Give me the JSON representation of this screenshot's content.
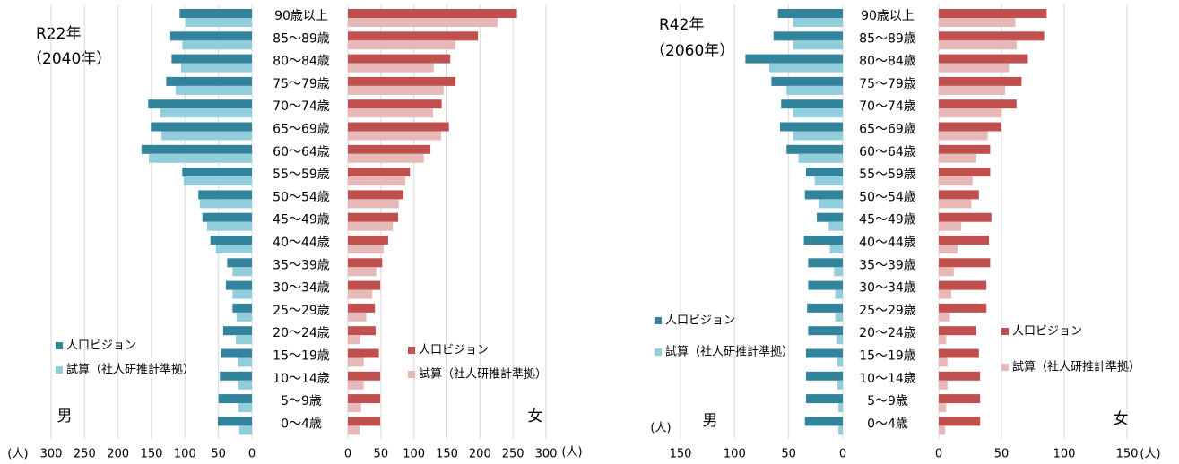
{
  "chart_data": [
    {
      "type": "population_pyramid",
      "title": "R22年",
      "subtitle": "（2040年）",
      "categories": [
        "90歳以上",
        "85～89歳",
        "80～84歳",
        "75～79歳",
        "70～74歳",
        "65～69歳",
        "60～64歳",
        "55～59歳",
        "50～54歳",
        "45～49歳",
        "40～44歳",
        "35～39歳",
        "30～34歳",
        "25～29歳",
        "20～24歳",
        "15～19歳",
        "10～14歳",
        "5～9歳",
        "0～4歳"
      ],
      "male": {
        "label": "男",
        "unit": "(人)",
        "xlim": [
          0,
          300
        ],
        "xticks": [
          300,
          250,
          200,
          150,
          100,
          50,
          0
        ],
        "series": [
          {
            "name": "人口ビジョン",
            "color": "#31849b",
            "values": [
              108,
              122,
              120,
              128,
              155,
              151,
              165,
              104,
              80,
              74,
              62,
              37,
              39,
              29,
              43,
              46,
              48,
              50,
              51
            ]
          },
          {
            "name": "試算（社人研推計準拠）",
            "color": "#92cddc",
            "values": [
              99,
              104,
              106,
              114,
              137,
              135,
              154,
              102,
              78,
              67,
              54,
              29,
              29,
              23,
              24,
              21,
              20,
              20,
              19
            ]
          }
        ]
      },
      "female": {
        "label": "女",
        "unit": "(人)",
        "xlim": [
          0,
          300
        ],
        "xticks": [
          0,
          50,
          100,
          150,
          200,
          250,
          300
        ],
        "series": [
          {
            "name": "人口ビジョン",
            "color": "#c0504d",
            "values": [
              256,
              197,
              155,
              163,
              142,
              153,
              125,
              94,
              84,
              76,
              61,
              52,
              49,
              41,
              42,
              47,
              49,
              49,
              49
            ]
          },
          {
            "name": "試算（社人研推計準拠）",
            "color": "#e6b9b8",
            "values": [
              227,
              163,
              130,
              145,
              129,
              141,
              115,
              87,
              77,
              68,
              54,
              43,
              37,
              28,
              19,
              24,
              24,
              20,
              18
            ]
          }
        ]
      }
    },
    {
      "type": "population_pyramid",
      "title": "R42年",
      "subtitle": "（2060年）",
      "categories": [
        "90歳以上",
        "85～89歳",
        "80～84歳",
        "75～79歳",
        "70～74歳",
        "65～69歳",
        "60～64歳",
        "55～59歳",
        "50～54歳",
        "45～49歳",
        "40～44歳",
        "35～39歳",
        "30～34歳",
        "25～29歳",
        "20～24歳",
        "15～19歳",
        "10～14歳",
        "5～9歳",
        "0～4歳"
      ],
      "male": {
        "label": "男",
        "unit": "(人)",
        "xlim": [
          0,
          150
        ],
        "xticks": [
          150,
          100,
          50,
          0
        ],
        "series": [
          {
            "name": "人口ビジョン",
            "color": "#31849b",
            "values": [
              60,
              64,
              90,
              66,
              57,
              58,
              52,
              34,
              35,
              24,
              36,
              32,
              32,
              33,
              32,
              34,
              34,
              34,
              35
            ]
          },
          {
            "name": "試算（社人研推計準拠）",
            "color": "#92cddc",
            "values": [
              46,
              46,
              68,
              52,
              46,
              46,
              41,
              26,
              22,
              13,
              12,
              8,
              7,
              7,
              6,
              5,
              5,
              4,
              4
            ]
          }
        ]
      },
      "female": {
        "label": "女",
        "unit": "(人)",
        "xlim": [
          0,
          150
        ],
        "xticks": [
          0,
          50,
          100,
          150
        ],
        "series": [
          {
            "name": "人口ビジョン",
            "color": "#c0504d",
            "values": [
              86,
              84,
              71,
              66,
              62,
              50,
              41,
              41,
              32,
              42,
              40,
              41,
              38,
              38,
              30,
              32,
              33,
              33,
              33
            ]
          },
          {
            "name": "試算（社人研推計準拠）",
            "color": "#e6b9b8",
            "values": [
              61,
              62,
              56,
              53,
              50,
              39,
              30,
              27,
              26,
              18,
              15,
              12,
              10,
              9,
              6,
              7,
              7,
              6,
              5
            ]
          }
        ]
      }
    }
  ]
}
